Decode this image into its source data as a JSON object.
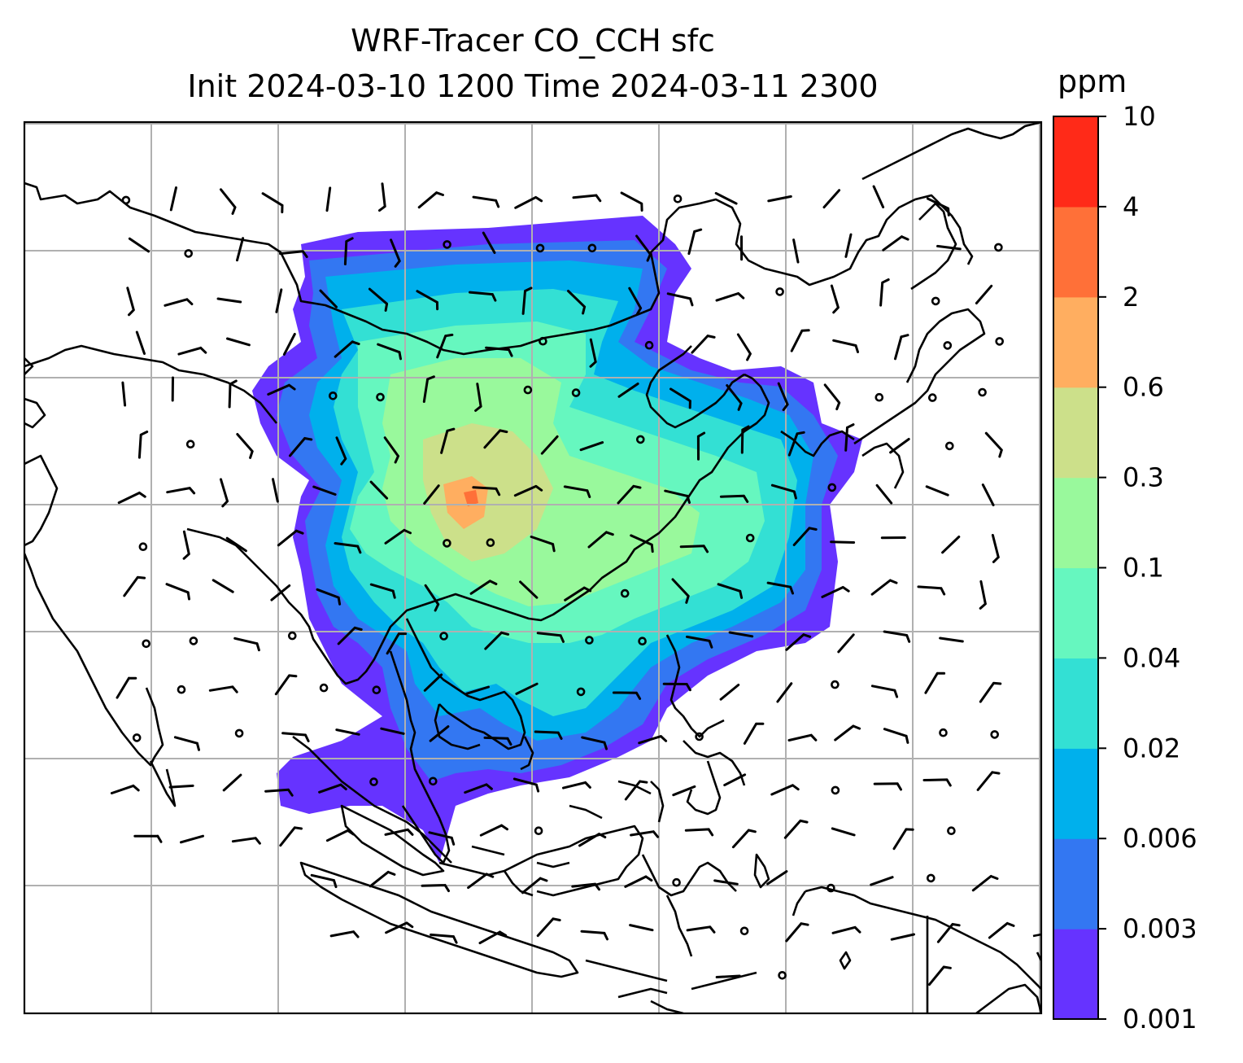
{
  "chart_data": {
    "type": "heatmap",
    "title": "WRF-Tracer CO_CCH sfc",
    "subtitle": "Init 2024-03-10 1200 Time 2024-03-11 2300",
    "colorbar": {
      "units": "ppm",
      "levels": [
        "0.001",
        "0.003",
        "0.006",
        "0.02",
        "0.04",
        "0.1",
        "0.3",
        "0.6",
        "2",
        "4",
        "10"
      ],
      "colors": [
        "#6633ff",
        "#3377f2",
        "#00b0ec",
        "#33e0d4",
        "#66f7bf",
        "#99f99c",
        "#cce08a",
        "#ffae60",
        "#ff7038",
        "#ff2a18"
      ]
    },
    "grid": true,
    "overlay": "wind barbs",
    "region_lon": [
      70,
      150
    ],
    "region_lat": [
      -15,
      55
    ]
  }
}
